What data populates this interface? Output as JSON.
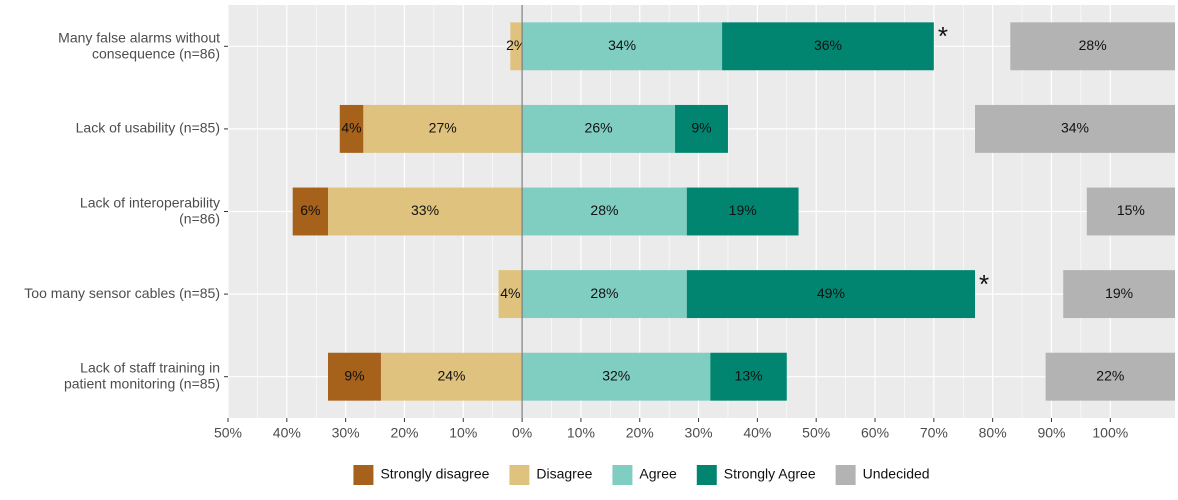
{
  "chart_data": {
    "type": "diverging_bar",
    "categories": [
      "Many false alarms without\nconsequence (n=86)",
      "Lack of usability (n=85)",
      "Lack of interoperability\n(n=86)",
      "Too many sensor cables (n=85)",
      "Lack of staff training in\npatient monitoring (n=85)"
    ],
    "series": [
      {
        "name": "Strongly disagree",
        "color": "#A6611A",
        "side": "left",
        "values": [
          null,
          4,
          6,
          null,
          9
        ],
        "value_labels": [
          null,
          "4%",
          "6%",
          null,
          "9%"
        ]
      },
      {
        "name": "Disagree",
        "color": "#DFC27D",
        "side": "left",
        "values": [
          2,
          27,
          33,
          4,
          24
        ],
        "value_labels": [
          "2%",
          "27%",
          "33%",
          "4%",
          "24%"
        ]
      },
      {
        "name": "Agree",
        "color": "#80CDC1",
        "side": "right",
        "values": [
          34,
          26,
          28,
          28,
          32
        ],
        "value_labels": [
          "34%",
          "26%",
          "28%",
          "28%",
          "32%"
        ]
      },
      {
        "name": "Strongly Agree",
        "color": "#018571",
        "side": "right",
        "values": [
          36,
          9,
          19,
          49,
          13
        ],
        "value_labels": [
          "36%",
          "9%",
          "19%",
          "49%",
          "13%"
        ]
      },
      {
        "name": "Undecided",
        "color": "#B3B3B3",
        "side": "end",
        "values": [
          28,
          34,
          15,
          19,
          22
        ],
        "value_labels": [
          "28%",
          "34%",
          "15%",
          "19%",
          "22%"
        ]
      }
    ],
    "annotations": [
      "*",
      null,
      null,
      "*",
      null
    ],
    "xlim": [
      -50,
      111
    ],
    "xticks": [
      {
        "value": -50,
        "label": "50%"
      },
      {
        "value": -40,
        "label": "40%"
      },
      {
        "value": -30,
        "label": "30%"
      },
      {
        "value": -20,
        "label": "20%"
      },
      {
        "value": -10,
        "label": "10%"
      },
      {
        "value": 0,
        "label": "0%"
      },
      {
        "value": 10,
        "label": "10%"
      },
      {
        "value": 20,
        "label": "20%"
      },
      {
        "value": 30,
        "label": "30%"
      },
      {
        "value": 40,
        "label": "40%"
      },
      {
        "value": 50,
        "label": "50%"
      },
      {
        "value": 60,
        "label": "60%"
      },
      {
        "value": 70,
        "label": "70%"
      },
      {
        "value": 80,
        "label": "80%"
      },
      {
        "value": 90,
        "label": "90%"
      },
      {
        "value": 100,
        "label": "100%"
      }
    ],
    "grid": true,
    "legend": "bottom"
  }
}
